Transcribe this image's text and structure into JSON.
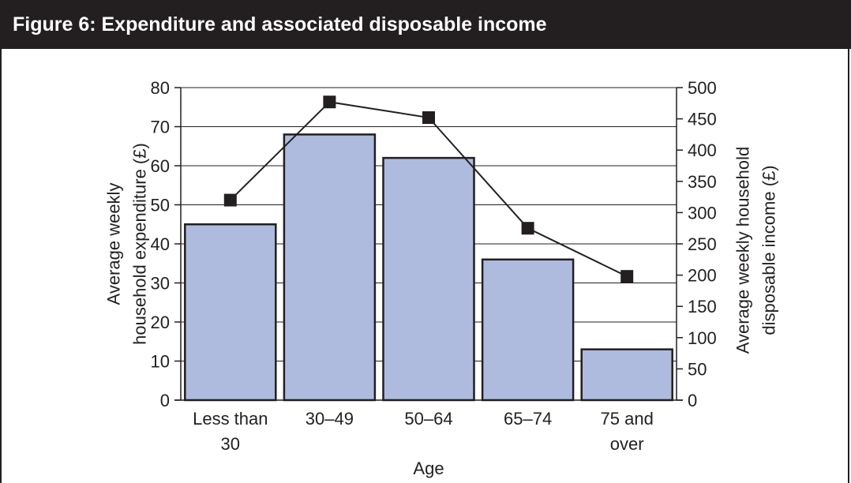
{
  "header": {
    "title": "Figure 6:  Expenditure and associated disposable income"
  },
  "chart_data": {
    "type": "bar",
    "categories": [
      [
        "Less than",
        "30"
      ],
      [
        "30–49"
      ],
      [
        "50–64"
      ],
      [
        "65–74"
      ],
      [
        "75 and",
        "over"
      ]
    ],
    "xlabel": "Age",
    "ylabel_left": [
      "Average weekly",
      "household expenditure (£)"
    ],
    "ylabel_right": [
      "Average weekly household",
      "disposable income (£)"
    ],
    "left_axis": {
      "min": 0,
      "max": 80,
      "step": 10
    },
    "right_axis": {
      "min": 0,
      "max": 500,
      "step": 50
    },
    "grid": true,
    "series": [
      {
        "type": "bar",
        "axis": "left",
        "values": [
          45,
          68,
          62,
          36,
          13
        ]
      },
      {
        "type": "line",
        "axis": "right",
        "marker": "square",
        "values": [
          320,
          477,
          452,
          275,
          198
        ]
      }
    ],
    "colors": {
      "bar_fill": "#aebbdf",
      "bar_stroke": "#231f20",
      "line": "#231f20",
      "grid": "#231f20",
      "text": "#231f20",
      "header_bg": "#231f20",
      "header_text": "#ffffff"
    }
  }
}
